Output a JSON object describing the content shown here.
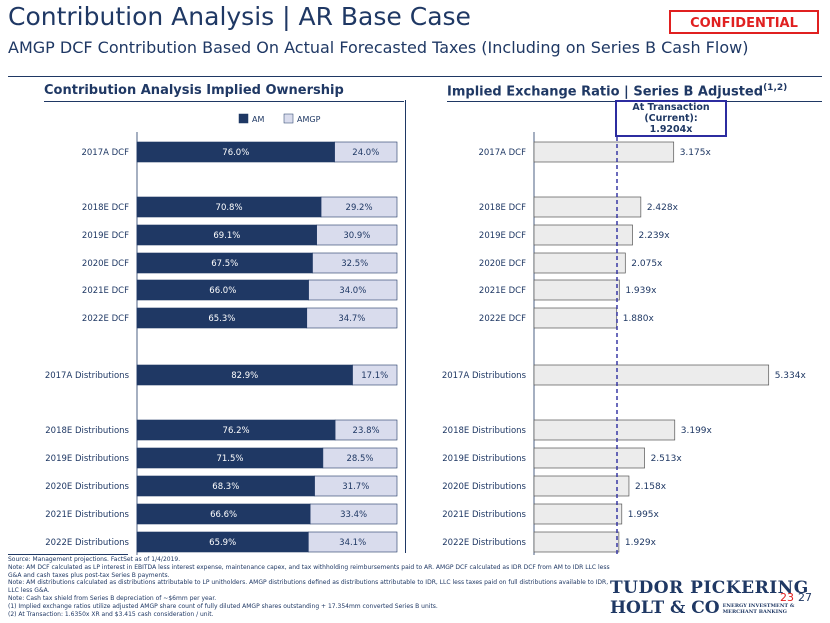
{
  "title": "Contribution Analysis | AR Base Case",
  "subtitle": "AMGP DCF Contribution Based On Actual Forecasted Taxes (Including on Series B Cash Flow)",
  "confidential": "CONFIDENTIAL",
  "left_section_title": "Contribution Analysis Implied Ownership",
  "right_section_title": "Implied Exchange Ratio | Series B Adjusted",
  "right_section_sup": "(1,2)",
  "callout": {
    "line1": "At Transaction",
    "line2": "(Current):",
    "line3": "1.9204x"
  },
  "colors": {
    "am": "#1f3864",
    "amgp": "#d9dced",
    "exchange_bar": "#ececec",
    "accent": "#e02020",
    "reference_line": "#2c2ca0"
  },
  "footnotes": [
    "Source: Management projections.  FactSet as of 1/4/2019.",
    "Note: AM DCF calculated as LP interest in EBITDA less interest expense, maintenance capex, and tax withholding reimbursements paid to AR.  AMGP DCF calculated as IDR DCF from AM to IDR LLC less",
    "G&A and cash taxes plus post-tax Series B payments.",
    "Note: AM distributions calculated as distributions attributable to LP unitholders. AMGP distributions defined as distributions attributable to IDR, LLC less taxes paid on full distributions available to IDR,",
    "LLC less G&A.",
    "Note: Cash tax shield from Series B depreciation of ~$6mm per year.",
    "(1)       Implied exchange ratios utilize adjusted AMGP share count of fully diluted AMGP shares outstanding + 17.354mm converted Series B units.",
    "(2)       At Transaction: 1.6350x XR and $3.415 cash consideration / unit."
  ],
  "logo": {
    "line1": "TUDOR PICKERING",
    "line2": "HOLT & CO",
    "tag1": "ENERGY INVESTMENT &",
    "tag2": "MERCHANT BANKING"
  },
  "page_numbers": {
    "red": "23",
    "blue": "27"
  },
  "chart_data": [
    {
      "type": "bar",
      "orientation": "horizontal",
      "stacked": true,
      "title": "Contribution Analysis Implied Ownership",
      "legend": [
        "AM",
        "AMGP"
      ],
      "legend_position": "top",
      "categories": [
        "2017A DCF",
        "2018E DCF",
        "2019E DCF",
        "2020E DCF",
        "2021E DCF",
        "2022E DCF",
        "2017A Distributions",
        "2018E Distributions",
        "2019E Distributions",
        "2020E Distributions",
        "2021E Distributions",
        "2022E Distributions"
      ],
      "series": [
        {
          "name": "AM",
          "values": [
            76.0,
            70.8,
            69.1,
            67.5,
            66.0,
            65.3,
            82.9,
            76.2,
            71.5,
            68.3,
            66.6,
            65.9
          ],
          "labels": [
            "76.0%",
            "70.8%",
            "69.1%",
            "67.5%",
            "66.0%",
            "65.3%",
            "82.9%",
            "76.2%",
            "71.5%",
            "68.3%",
            "66.6%",
            "65.9%"
          ]
        },
        {
          "name": "AMGP",
          "values": [
            24.0,
            29.2,
            30.9,
            32.5,
            34.0,
            34.7,
            17.1,
            23.8,
            28.5,
            31.7,
            33.4,
            34.1
          ],
          "labels": [
            "24.0%",
            "29.2%",
            "30.9%",
            "32.5%",
            "34.0%",
            "34.7%",
            "17.1%",
            "23.8%",
            "28.5%",
            "31.7%",
            "33.4%",
            "34.1%"
          ]
        }
      ],
      "xlim": [
        0,
        100
      ]
    },
    {
      "type": "bar",
      "orientation": "horizontal",
      "title": "Implied Exchange Ratio | Series B Adjusted",
      "categories": [
        "2017A DCF",
        "2018E DCF",
        "2019E DCF",
        "2020E DCF",
        "2021E DCF",
        "2022E DCF",
        "2017A Distributions",
        "2018E Distributions",
        "2019E Distributions",
        "2020E Distributions",
        "2021E Distributions",
        "2022E Distributions"
      ],
      "values": [
        3.175,
        2.428,
        2.239,
        2.075,
        1.939,
        1.88,
        5.334,
        3.199,
        2.513,
        2.158,
        1.995,
        1.929
      ],
      "labels": [
        "3.175x",
        "2.428x",
        "2.239x",
        "2.075x",
        "1.939x",
        "1.880x",
        "5.334x",
        "3.199x",
        "2.513x",
        "2.158x",
        "1.995x",
        "1.929x"
      ],
      "reference_line": {
        "value": 1.9204,
        "label": "At Transaction (Current): 1.9204x"
      },
      "xlim": [
        0,
        5.5
      ]
    }
  ]
}
